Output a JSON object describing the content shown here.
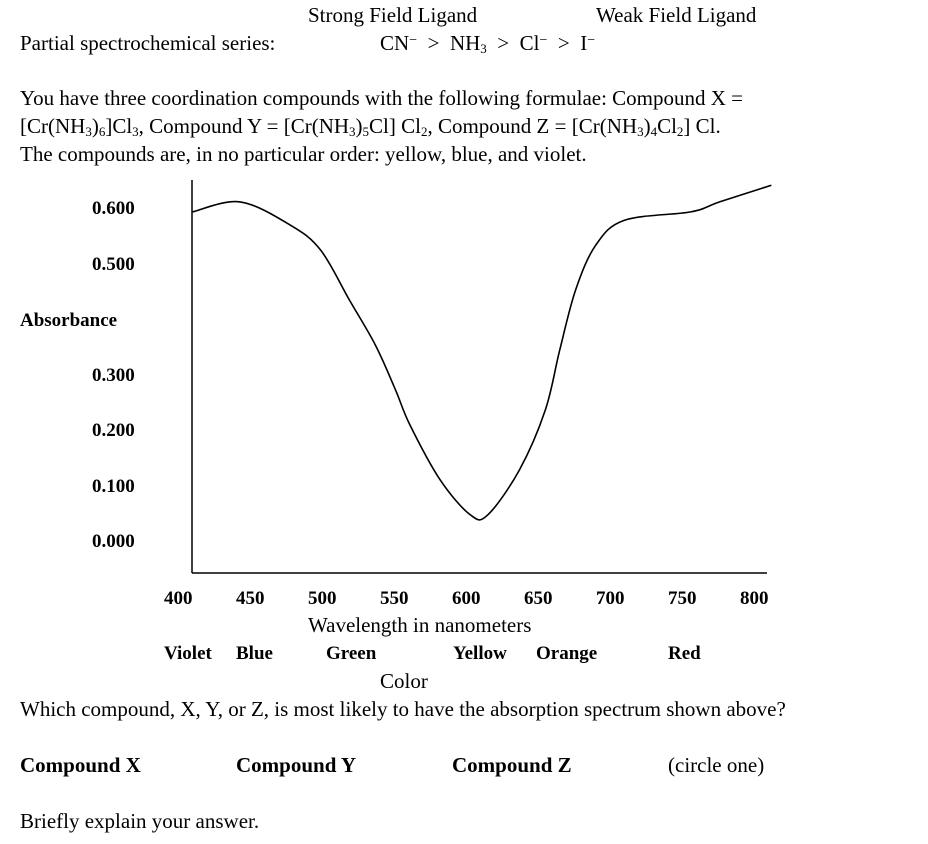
{
  "series_header": {
    "strong": "Strong Field Ligand",
    "weak": "Weak Field Ligand"
  },
  "series_line": {
    "label": "Partial spectrochemical series:",
    "ligands": [
      {
        "base": "CN",
        "sup": "−"
      },
      {
        "base": "NH",
        "sub": "3"
      },
      {
        "base": "Cl",
        "sup": "−"
      },
      {
        "base": "I",
        "sup": "−"
      }
    ],
    "separator": ">"
  },
  "intro": {
    "line1": "You have three coordination compounds with the following formulae: Compound X =",
    "line2_parts": [
      "[Cr(NH",
      "3",
      ")",
      "6",
      "]Cl",
      "3",
      ", Compound Y = [Cr(NH",
      "3",
      ")",
      "5",
      "Cl] Cl",
      "2",
      ", Compound Z = [Cr(NH",
      "3",
      ")",
      "4",
      "Cl",
      "2",
      "] Cl."
    ],
    "line3": "The compounds are, in no particular order: yellow, blue, and violet."
  },
  "chart_data": {
    "type": "line",
    "ylabel": "Absorbance",
    "xlabel": "Wavelength in nanometers",
    "y_ticks": [
      "0.600",
      "0.500",
      "0.300",
      "0.200",
      "0.100",
      "0.000"
    ],
    "y_tick_values": [
      0.6,
      0.5,
      0.3,
      0.2,
      0.1,
      0.0
    ],
    "x_ticks": [
      "400",
      "450",
      "500",
      "550",
      "600",
      "650",
      "700",
      "750",
      "800"
    ],
    "x_tick_values": [
      400,
      450,
      500,
      550,
      600,
      650,
      700,
      750,
      800
    ],
    "color_label": "Color",
    "color_names": [
      "Violet",
      "Blue",
      "Green",
      "Yellow",
      "Orange",
      "Red"
    ],
    "grid": false,
    "series": [
      {
        "x": [
          408,
          441,
          476,
          497,
          517,
          535,
          549,
          559,
          580,
          601,
          613,
          635,
          653,
          663,
          674,
          688,
          708,
          754,
          774,
          810
        ],
        "y": [
          0.593,
          0.611,
          0.569,
          0.524,
          0.434,
          0.353,
          0.272,
          0.209,
          0.11,
          0.047,
          0.047,
          0.128,
          0.236,
          0.344,
          0.452,
          0.533,
          0.578,
          0.593,
          0.611,
          0.641
        ]
      }
    ],
    "line_color": "#000000"
  },
  "question": "Which compound, X, Y, or Z, is most likely to have the absorption spectrum shown above?",
  "choices": [
    "Compound X",
    "Compound Y",
    "Compound Z"
  ],
  "choice_hint": "(circle one)",
  "explain": "Briefly explain your answer."
}
